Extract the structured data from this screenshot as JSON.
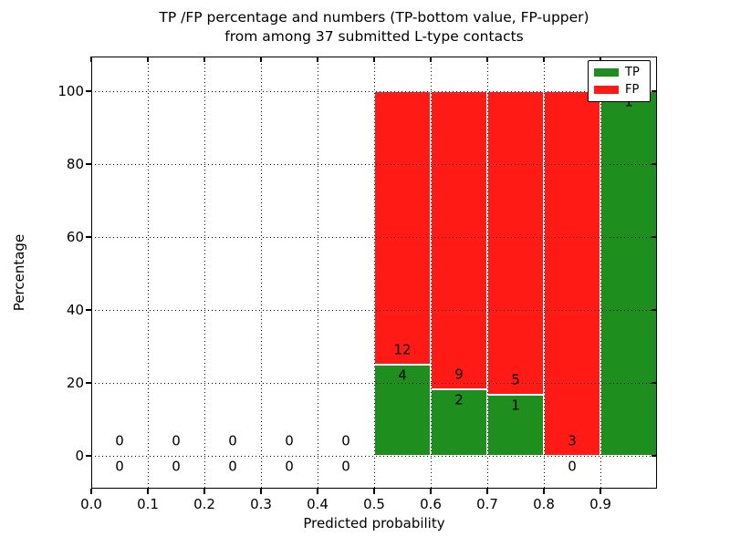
{
  "figure": {
    "background": "#ffffff"
  },
  "chart_data": {
    "type": "bar",
    "stacked": true,
    "title_lines": [
      "TP /FP percentage and numbers (TP-bottom value, FP-upper)",
      "from among 37 submitted L-type contacts"
    ],
    "xlabel": "Predicted probability",
    "ylabel": "Percentage",
    "total_submitted_contacts": 37,
    "xlim": [
      0.0,
      1.0
    ],
    "ylim": [
      -9.5,
      109.5
    ],
    "grid": "dotted",
    "xticks": [
      0.0,
      0.1,
      0.2,
      0.3,
      0.4,
      0.5,
      0.6,
      0.7,
      0.8,
      0.9
    ],
    "xtick_labels": [
      "0.0",
      "0.1",
      "0.2",
      "0.3",
      "0.4",
      "0.5",
      "0.6",
      "0.7",
      "0.8",
      "0.9"
    ],
    "yticks": [
      0,
      20,
      40,
      60,
      80,
      100
    ],
    "ytick_labels": [
      "0",
      "20",
      "40",
      "60",
      "80",
      "100"
    ],
    "legend": {
      "position": "upper right",
      "entries": [
        {
          "label": "TP",
          "color": "#1e8f1e"
        },
        {
          "label": "FP",
          "color": "#ff1a15"
        }
      ]
    },
    "bins": [
      {
        "x0": 0.0,
        "x1": 0.1,
        "tp_count": 0,
        "fp_count": 0,
        "tp_pct": 0,
        "fp_pct": 0
      },
      {
        "x0": 0.1,
        "x1": 0.2,
        "tp_count": 0,
        "fp_count": 0,
        "tp_pct": 0,
        "fp_pct": 0
      },
      {
        "x0": 0.2,
        "x1": 0.3,
        "tp_count": 0,
        "fp_count": 0,
        "tp_pct": 0,
        "fp_pct": 0
      },
      {
        "x0": 0.3,
        "x1": 0.4,
        "tp_count": 0,
        "fp_count": 0,
        "tp_pct": 0,
        "fp_pct": 0
      },
      {
        "x0": 0.4,
        "x1": 0.5,
        "tp_count": 0,
        "fp_count": 0,
        "tp_pct": 0,
        "fp_pct": 0
      },
      {
        "x0": 0.5,
        "x1": 0.6,
        "tp_count": 4,
        "fp_count": 12,
        "tp_pct": 25.0,
        "fp_pct": 75.0
      },
      {
        "x0": 0.6,
        "x1": 0.7,
        "tp_count": 2,
        "fp_count": 9,
        "tp_pct": 18.18,
        "fp_pct": 81.82
      },
      {
        "x0": 0.7,
        "x1": 0.8,
        "tp_count": 1,
        "fp_count": 5,
        "tp_pct": 16.67,
        "fp_pct": 83.33
      },
      {
        "x0": 0.8,
        "x1": 0.9,
        "tp_count": 0,
        "fp_count": 3,
        "tp_pct": 0,
        "fp_pct": 100.0
      },
      {
        "x0": 0.9,
        "x1": 1.0,
        "tp_count": 1,
        "fp_count": 0,
        "tp_pct": 100.0,
        "fp_pct": 0
      }
    ]
  },
  "colors": {
    "tp_green": "#1e8f1e",
    "fp_red": "#ff1a15",
    "bar_edge": "#ffffff",
    "grid": "#000000",
    "text": "#000000"
  }
}
